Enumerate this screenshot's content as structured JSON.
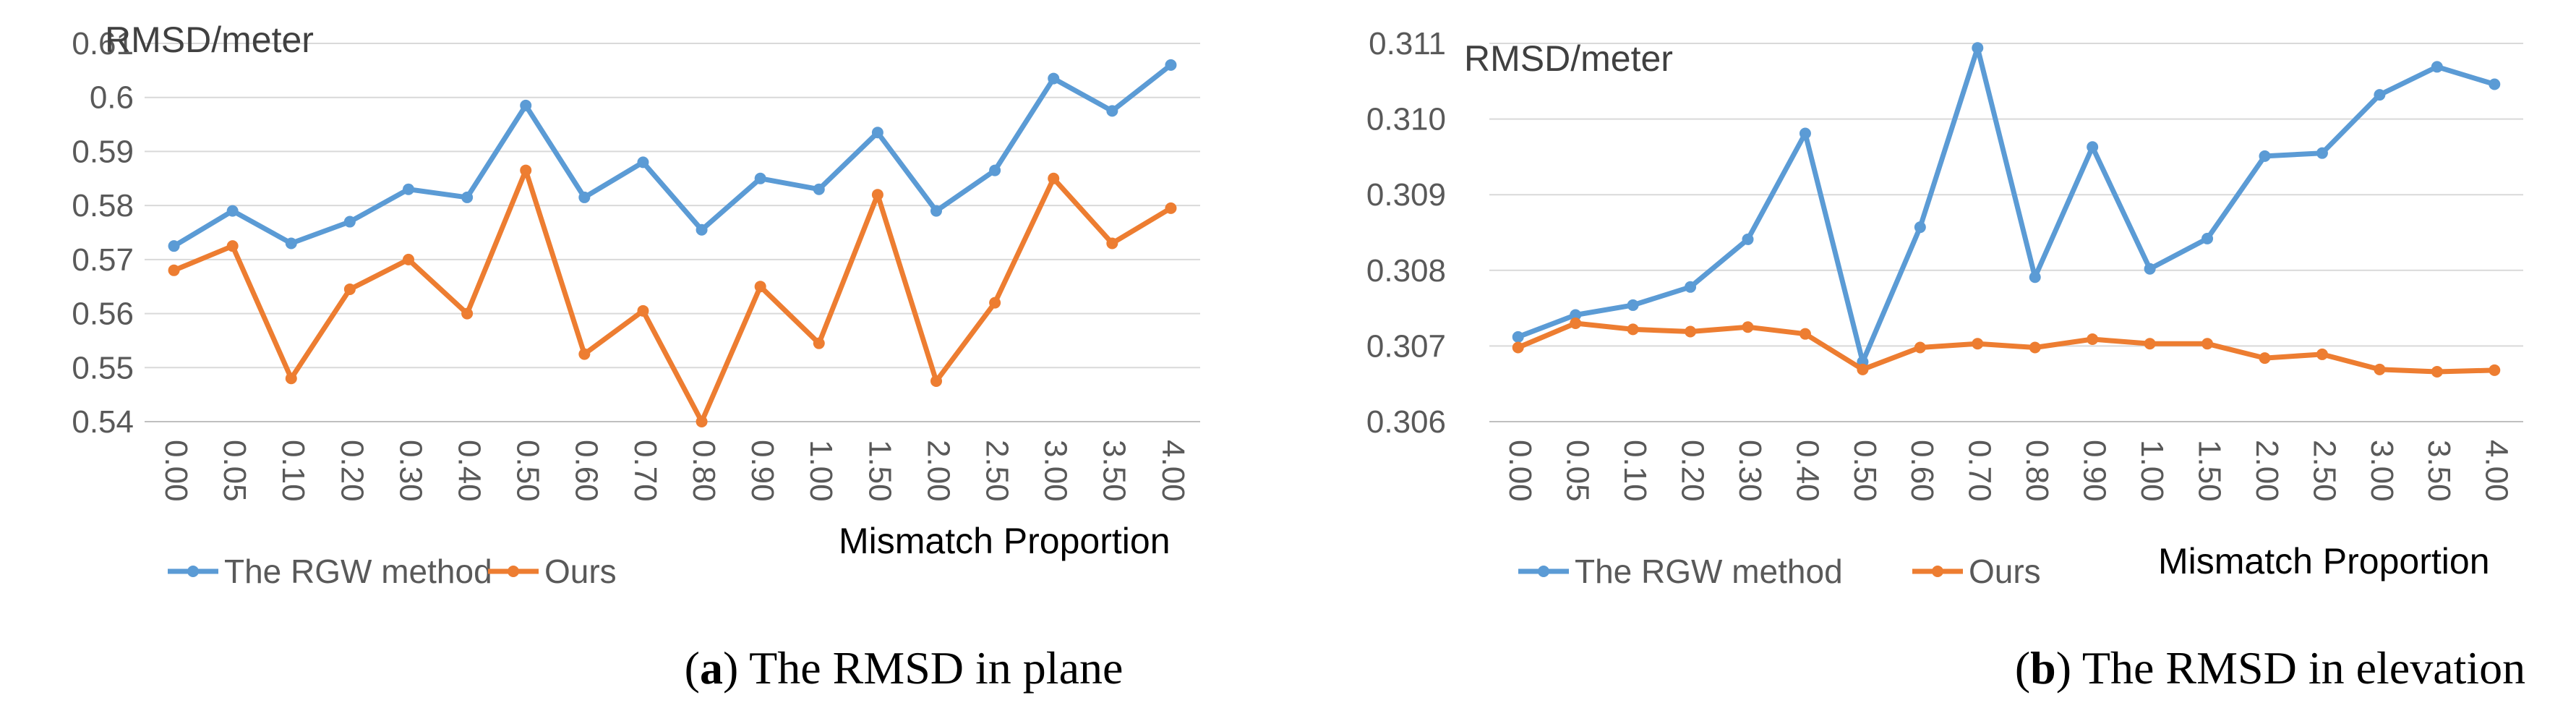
{
  "chart_data": [
    {
      "type": "line",
      "ylabel": "RMSD/meter",
      "xlabel": "Mismatch Proportion",
      "categories": [
        "0.00",
        "0.05",
        "0.10",
        "0.20",
        "0.30",
        "0.40",
        "0.50",
        "0.60",
        "0.70",
        "0.80",
        "0.90",
        "1.00",
        "1.50",
        "2.00",
        "2.50",
        "3.00",
        "3.50",
        "4.00"
      ],
      "ylim": [
        0.54,
        0.61
      ],
      "yticks": [
        "0.54",
        "0.55",
        "0.56",
        "0.57",
        "0.58",
        "0.59",
        "0.6",
        "0.61"
      ],
      "ytick_values": [
        0.54,
        0.55,
        0.56,
        0.57,
        0.58,
        0.59,
        0.6,
        0.61
      ],
      "grid": true,
      "legend_position": "bottom-left",
      "series": [
        {
          "name": "The RGW method",
          "color": "#5b9bd5",
          "values": [
            0.5725,
            0.579,
            0.573,
            0.577,
            0.583,
            0.5815,
            0.5985,
            0.5815,
            0.588,
            0.5755,
            0.585,
            0.583,
            0.5935,
            0.579,
            0.5865,
            0.6035,
            0.5975,
            0.606
          ]
        },
        {
          "name": "Ours",
          "color": "#ed7d31",
          "values": [
            0.568,
            0.5725,
            0.548,
            0.5645,
            0.57,
            0.56,
            0.5865,
            0.5525,
            0.5605,
            0.54,
            0.565,
            0.5545,
            0.582,
            0.5475,
            0.562,
            0.585,
            0.573,
            0.5795
          ]
        }
      ],
      "caption_label": "a",
      "caption_text": "The RMSD in plane"
    },
    {
      "type": "line",
      "ylabel": "RMSD/meter",
      "xlabel": "Mismatch Proportion",
      "categories": [
        "0.00",
        "0.05",
        "0.10",
        "0.20",
        "0.30",
        "0.40",
        "0.50",
        "0.60",
        "0.70",
        "0.80",
        "0.90",
        "1.00",
        "1.50",
        "2.00",
        "2.50",
        "3.00",
        "3.50",
        "4.00"
      ],
      "ylim": [
        0.306,
        0.311
      ],
      "yticks": [
        "0.306",
        "0.307",
        "0.308",
        "0.309",
        "0.310",
        "0.311"
      ],
      "ytick_values": [
        0.306,
        0.307,
        0.308,
        0.309,
        0.31,
        0.311
      ],
      "grid": true,
      "legend_position": "bottom-left",
      "series": [
        {
          "name": "The RGW method",
          "color": "#5b9bd5",
          "values": [
            0.30712,
            0.30741,
            0.30754,
            0.30778,
            0.30841,
            0.30981,
            0.30679,
            0.30857,
            0.31094,
            0.30791,
            0.30963,
            0.30802,
            0.30842,
            0.30951,
            0.30955,
            0.31032,
            0.31069,
            0.31046
          ]
        },
        {
          "name": "Ours",
          "color": "#ed7d31",
          "values": [
            0.30698,
            0.3073,
            0.30722,
            0.30719,
            0.30725,
            0.30716,
            0.30669,
            0.30698,
            0.30703,
            0.30698,
            0.30709,
            0.30703,
            0.30703,
            0.30684,
            0.30689,
            0.30669,
            0.30666,
            0.30668
          ]
        }
      ],
      "caption_label": "b",
      "caption_text": "The RMSD in elevation"
    }
  ]
}
